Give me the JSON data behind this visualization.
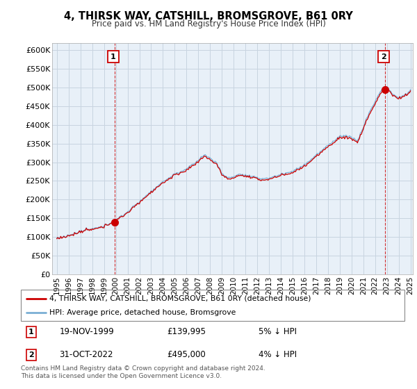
{
  "title": "4, THIRSK WAY, CATSHILL, BROMSGROVE, B61 0RY",
  "subtitle": "Price paid vs. HM Land Registry's House Price Index (HPI)",
  "ylabel_ticks": [
    "£0",
    "£50K",
    "£100K",
    "£150K",
    "£200K",
    "£250K",
    "£300K",
    "£350K",
    "£400K",
    "£450K",
    "£500K",
    "£550K",
    "£600K"
  ],
  "ytick_values": [
    0,
    50000,
    100000,
    150000,
    200000,
    250000,
    300000,
    350000,
    400000,
    450000,
    500000,
    550000,
    600000
  ],
  "ylim": [
    0,
    620000
  ],
  "purchase1": {
    "date": "19-NOV-1999",
    "price": 139995,
    "label": "1",
    "hpi_diff": "5% ↓ HPI",
    "x_year": 1999.88
  },
  "purchase2": {
    "date": "31-OCT-2022",
    "price": 495000,
    "label": "2",
    "hpi_diff": "4% ↓ HPI",
    "x_year": 2022.83
  },
  "legend_label1": "4, THIRSK WAY, CATSHILL, BROMSGROVE, B61 0RY (detached house)",
  "legend_label2": "HPI: Average price, detached house, Bromsgrove",
  "footer": "Contains HM Land Registry data © Crown copyright and database right 2024.\nThis data is licensed under the Open Government Licence v3.0.",
  "sale_color": "#cc0000",
  "hpi_color": "#7aafd4",
  "bg_chart": "#e8f0f8",
  "background_color": "#ffffff",
  "grid_color": "#c8d4e0",
  "xlim_start": 1994.6,
  "xlim_end": 2025.2,
  "xtick_years": [
    1995,
    1996,
    1997,
    1998,
    1999,
    2000,
    2001,
    2002,
    2003,
    2004,
    2005,
    2006,
    2007,
    2008,
    2009,
    2010,
    2011,
    2012,
    2013,
    2014,
    2015,
    2016,
    2017,
    2018,
    2019,
    2020,
    2021,
    2022,
    2023,
    2024,
    2025
  ]
}
